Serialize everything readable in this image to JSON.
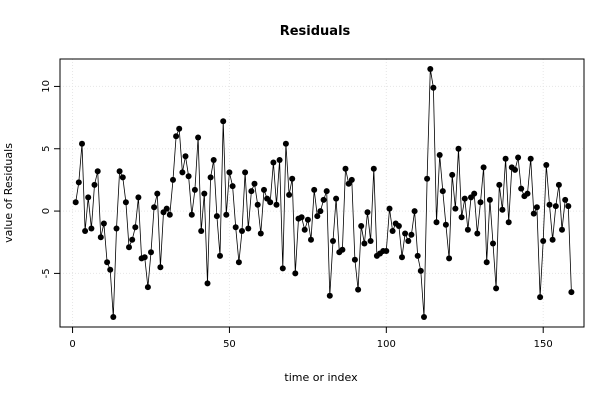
{
  "chart_data": {
    "type": "line",
    "title": "Residuals",
    "xlabel": "time or index",
    "ylabel": "value of Residuals",
    "xlim": [
      -4,
      163
    ],
    "ylim": [
      -9.3,
      12.2
    ],
    "x_ticks": [
      0,
      50,
      100,
      150
    ],
    "y_ticks": [
      -5,
      0,
      5,
      10
    ],
    "grid": true,
    "series_color": "#000000",
    "x": [
      1,
      2,
      3,
      4,
      5,
      6,
      7,
      8,
      9,
      10,
      11,
      12,
      13,
      14,
      15,
      16,
      17,
      18,
      19,
      20,
      21,
      22,
      23,
      24,
      25,
      26,
      27,
      28,
      29,
      30,
      31,
      32,
      33,
      34,
      35,
      36,
      37,
      38,
      39,
      40,
      41,
      42,
      43,
      44,
      45,
      46,
      47,
      48,
      49,
      50,
      51,
      52,
      53,
      54,
      55,
      56,
      57,
      58,
      59,
      60,
      61,
      62,
      63,
      64,
      65,
      66,
      67,
      68,
      69,
      70,
      71,
      72,
      73,
      74,
      75,
      76,
      77,
      78,
      79,
      80,
      81,
      82,
      83,
      84,
      85,
      86,
      87,
      88,
      89,
      90,
      91,
      92,
      93,
      94,
      95,
      96,
      97,
      98,
      99,
      100,
      101,
      102,
      103,
      104,
      105,
      106,
      107,
      108,
      109,
      110,
      111,
      112,
      113,
      114,
      115,
      116,
      117,
      118,
      119,
      120,
      121,
      122,
      123,
      124,
      125,
      126,
      127,
      128,
      129,
      130,
      131,
      132,
      133,
      134,
      135,
      136,
      137,
      138,
      139,
      140,
      141,
      142,
      143,
      144,
      145,
      146,
      147,
      148,
      149,
      150,
      151,
      152,
      153,
      154,
      155,
      156,
      157,
      158,
      159
    ],
    "y": [
      0.7,
      2.3,
      5.4,
      -1.6,
      1.1,
      -1.4,
      2.1,
      3.2,
      -2.1,
      -1.0,
      -4.1,
      -4.7,
      -8.5,
      -1.4,
      3.2,
      2.7,
      0.7,
      -2.9,
      -2.3,
      -1.3,
      1.1,
      -3.8,
      -3.7,
      -6.1,
      -3.3,
      0.3,
      1.4,
      -4.5,
      -0.1,
      0.2,
      -0.3,
      2.5,
      6.0,
      6.6,
      3.1,
      4.4,
      2.8,
      -0.3,
      1.7,
      5.9,
      -1.6,
      1.4,
      -5.8,
      2.7,
      4.1,
      -0.4,
      -3.6,
      7.2,
      -0.3,
      3.1,
      2.0,
      -1.3,
      -4.1,
      -1.6,
      3.1,
      -1.4,
      1.6,
      2.2,
      0.5,
      -1.8,
      1.7,
      1.0,
      0.7,
      3.9,
      0.5,
      4.1,
      -4.6,
      5.4,
      1.3,
      2.6,
      -5.0,
      -0.6,
      -0.5,
      -1.5,
      -0.7,
      -2.3,
      1.7,
      -0.4,
      0.0,
      0.9,
      1.6,
      -6.8,
      -2.4,
      1.0,
      -3.3,
      -3.1,
      3.4,
      2.2,
      2.5,
      -3.9,
      -6.3,
      -1.2,
      -2.6,
      -0.1,
      -2.4,
      3.4,
      -3.6,
      -3.4,
      -3.2,
      -3.2,
      0.2,
      -1.6,
      -1.0,
      -1.2,
      -3.7,
      -1.8,
      -2.4,
      -1.9,
      0.0,
      -3.6,
      -4.8,
      -8.5,
      2.6,
      11.4,
      9.9,
      -0.9,
      4.5,
      1.6,
      -1.1,
      -3.8,
      2.9,
      0.2,
      5.0,
      -0.5,
      1.0,
      -1.5,
      1.1,
      1.4,
      -1.8,
      0.7,
      3.5,
      -4.1,
      0.9,
      -2.6,
      -6.2,
      2.1,
      0.1,
      4.2,
      -0.9,
      3.5,
      3.3,
      4.3,
      1.8,
      1.2,
      1.4,
      4.2,
      -0.2,
      0.3,
      -6.9,
      -2.4,
      3.7,
      0.5,
      -2.3,
      0.4,
      2.1,
      -1.5,
      0.9,
      0.4,
      -6.5
    ]
  }
}
